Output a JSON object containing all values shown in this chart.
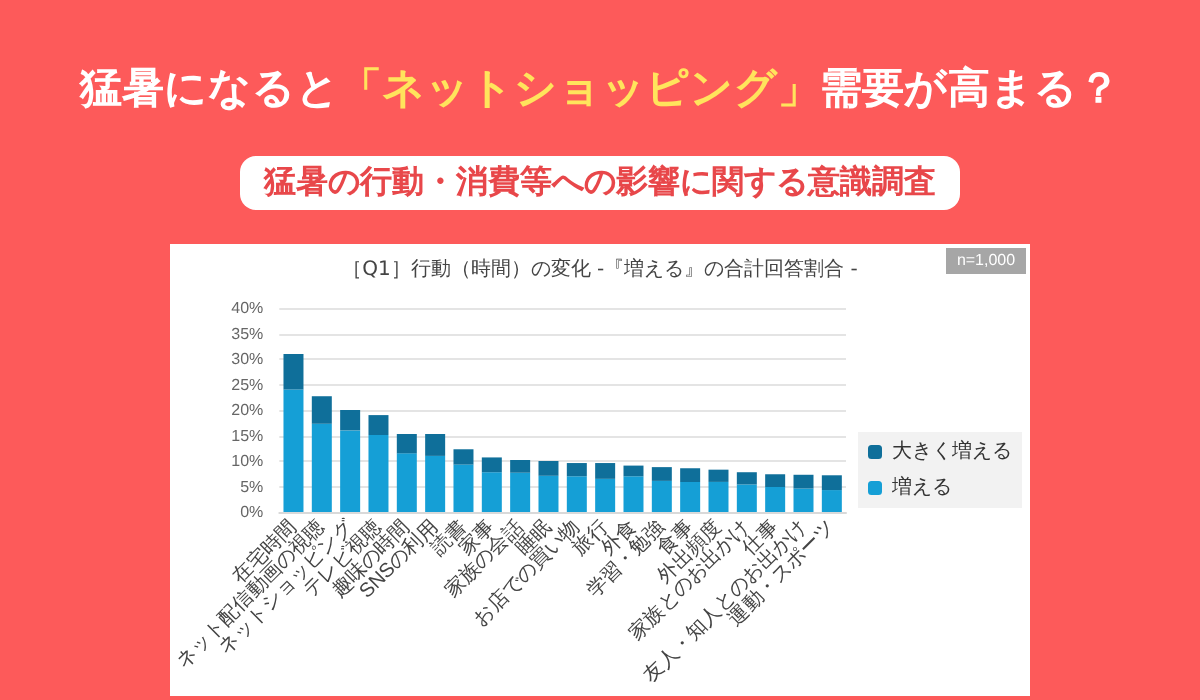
{
  "chart_data": {
    "type": "bar",
    "title": "猛暑になると「ネットショッピング」需要が高まる？",
    "subtitle": "猛暑の行動・消費等への影響に関する意識調査",
    "annotations": [
      "［Q1］行動（時間）の変化 -『増える』の合計回答割合 -",
      "n=1,000"
    ],
    "categories": [
      "在宅時間",
      "ネット配信動画の視聴",
      "ネットショッピング",
      "テレビ視聴",
      "趣味の時間",
      "SNSの利用",
      "読書",
      "家事",
      "家族の会話",
      "睡眠",
      "お店での買い物",
      "旅行",
      "外食",
      "学習・勉強",
      "食事",
      "外出頻度",
      "家族とのお出かけ",
      "仕事",
      "友人・知人とのお出かけ",
      "運動・スポーツ"
    ],
    "series": [
      {
        "name": "増える",
        "color": "#159fd6",
        "values": [
          24,
          17.3,
          16,
          15.1,
          11.5,
          11,
          9.3,
          7.8,
          7.7,
          7.1,
          7,
          6.5,
          7,
          6.1,
          5.9,
          5.9,
          5.4,
          4.9,
          4.6,
          4.3
        ]
      },
      {
        "name": "大きく増える",
        "color": "#0f6f9a",
        "values": [
          7,
          5.4,
          4,
          3.9,
          3.8,
          4.3,
          3,
          2.9,
          2.5,
          2.9,
          2.6,
          3.1,
          2.1,
          2.7,
          2.7,
          2.4,
          2.4,
          2.5,
          2.7,
          2.9
        ]
      }
    ],
    "stacked": true,
    "ylim": [
      0,
      40
    ],
    "yticks": [
      {
        "value": 0,
        "label": "0%"
      },
      {
        "value": 5,
        "label": "5%"
      },
      {
        "value": 10,
        "label": "10%"
      },
      {
        "value": 15,
        "label": "15%"
      },
      {
        "value": 20,
        "label": "20%"
      },
      {
        "value": 25,
        "label": "25%"
      },
      {
        "value": 30,
        "label": "30%"
      },
      {
        "value": 35,
        "label": "35%"
      },
      {
        "value": 40,
        "label": "40%"
      }
    ],
    "grid": "y",
    "legend": "right"
  }
}
